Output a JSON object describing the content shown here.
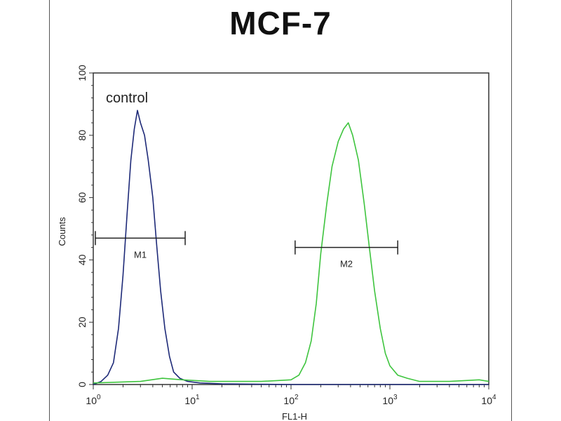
{
  "chart_data": {
    "type": "line",
    "title": "MCF-7",
    "xlabel": "FL1-H",
    "ylabel": "Counts",
    "xscale": "log",
    "xlim": [
      1,
      10000
    ],
    "ylim": [
      0,
      100
    ],
    "x_ticks": [
      {
        "base": "10",
        "exp": "0",
        "value": 1
      },
      {
        "base": "10",
        "exp": "1",
        "value": 10
      },
      {
        "base": "10",
        "exp": "2",
        "value": 100
      },
      {
        "base": "10",
        "exp": "3",
        "value": 1000
      },
      {
        "base": "10",
        "exp": "4",
        "value": 10000
      }
    ],
    "y_ticks": [
      "0",
      "20",
      "40",
      "60",
      "80",
      "100"
    ],
    "annotation": "control",
    "series": [
      {
        "color": "#1e2a78",
        "points": [
          [
            1.0,
            0
          ],
          [
            1.2,
            1
          ],
          [
            1.4,
            3
          ],
          [
            1.6,
            7
          ],
          [
            1.8,
            18
          ],
          [
            2.0,
            35
          ],
          [
            2.2,
            55
          ],
          [
            2.4,
            72
          ],
          [
            2.6,
            82
          ],
          [
            2.8,
            88
          ],
          [
            3.0,
            84
          ],
          [
            3.3,
            80
          ],
          [
            3.6,
            72
          ],
          [
            4.0,
            60
          ],
          [
            4.4,
            44
          ],
          [
            4.8,
            30
          ],
          [
            5.3,
            18
          ],
          [
            5.9,
            9
          ],
          [
            6.5,
            4
          ],
          [
            7.5,
            2
          ],
          [
            9,
            1
          ],
          [
            12,
            0.5
          ],
          [
            20,
            0.2
          ],
          [
            100,
            0
          ],
          [
            10000,
            0
          ]
        ]
      },
      {
        "color": "#3ec43e",
        "points": [
          [
            1.0,
            0.5
          ],
          [
            3,
            1
          ],
          [
            5,
            2
          ],
          [
            8,
            1.5
          ],
          [
            15,
            1
          ],
          [
            50,
            1
          ],
          [
            100,
            1.5
          ],
          [
            120,
            3
          ],
          [
            140,
            7
          ],
          [
            160,
            14
          ],
          [
            180,
            26
          ],
          [
            200,
            42
          ],
          [
            230,
            58
          ],
          [
            260,
            70
          ],
          [
            300,
            78
          ],
          [
            340,
            82
          ],
          [
            380,
            84
          ],
          [
            420,
            80
          ],
          [
            480,
            72
          ],
          [
            550,
            58
          ],
          [
            620,
            44
          ],
          [
            700,
            30
          ],
          [
            800,
            18
          ],
          [
            900,
            10
          ],
          [
            1000,
            6
          ],
          [
            1200,
            3
          ],
          [
            1500,
            2
          ],
          [
            2000,
            1
          ],
          [
            4000,
            1
          ],
          [
            8000,
            1.5
          ],
          [
            10000,
            1
          ]
        ]
      }
    ],
    "markers": [
      {
        "label": "M1",
        "x_start": 1.05,
        "x_end": 8.5,
        "y": 47
      },
      {
        "label": "M2",
        "x_start": 110,
        "x_end": 1200,
        "y": 44
      }
    ]
  }
}
